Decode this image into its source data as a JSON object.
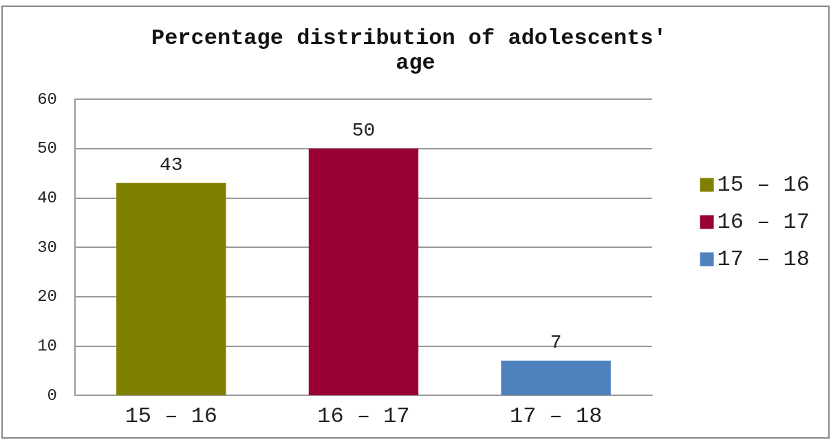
{
  "chart_data": {
    "type": "bar",
    "title": "Percentage distribution of adolescents' age",
    "categories": [
      "15 – 16",
      "16 – 17",
      "17 – 18"
    ],
    "series": [
      {
        "name": "15 – 16",
        "color": "#808000",
        "values": [
          43,
          null,
          null
        ]
      },
      {
        "name": "16 – 17",
        "color": "#990033",
        "values": [
          null,
          50,
          null
        ]
      },
      {
        "name": "17 – 18",
        "color": "#4f81bd",
        "values": [
          null,
          null,
          7
        ]
      }
    ],
    "ylim": [
      0,
      60
    ],
    "yticks": [
      0,
      10,
      20,
      30,
      40,
      50,
      60
    ],
    "grid": "y",
    "legend": "right",
    "data_labels": true
  }
}
